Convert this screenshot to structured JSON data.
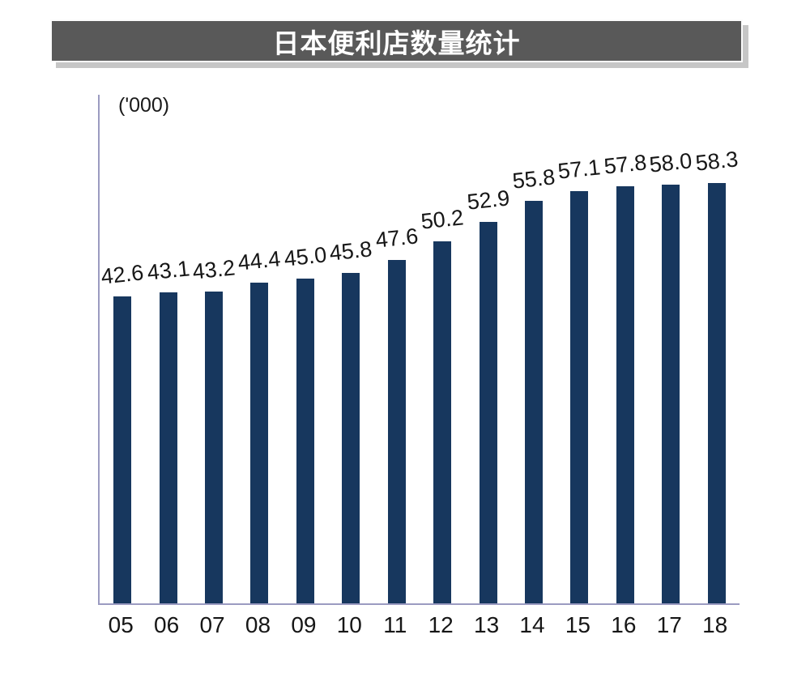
{
  "title": {
    "text": "日本便利店数量统计"
  },
  "chart_data": {
    "type": "bar",
    "title": "日本便利店数量统计",
    "unit_label": "('000)",
    "xlabel": "",
    "ylabel": "('000)",
    "categories": [
      "05",
      "06",
      "07",
      "08",
      "09",
      "10",
      "11",
      "12",
      "13",
      "14",
      "15",
      "16",
      "17",
      "18"
    ],
    "values": [
      42.6,
      43.1,
      43.2,
      44.4,
      45.0,
      45.8,
      47.6,
      50.2,
      52.9,
      55.8,
      57.1,
      57.8,
      58.0,
      58.3
    ],
    "value_labels": [
      "42.6",
      "43.1",
      "43.2",
      "44.4",
      "45.0",
      "45.8",
      "47.6",
      "50.2",
      "52.9",
      "55.8",
      "57.1",
      "57.8",
      "58.0",
      "58.3"
    ],
    "ylim": [
      0,
      70.5
    ],
    "grid": false,
    "legend": false,
    "bar_color": "#17375e",
    "axis_color": "#9b9bc1",
    "label_rotation_deg": -6
  }
}
